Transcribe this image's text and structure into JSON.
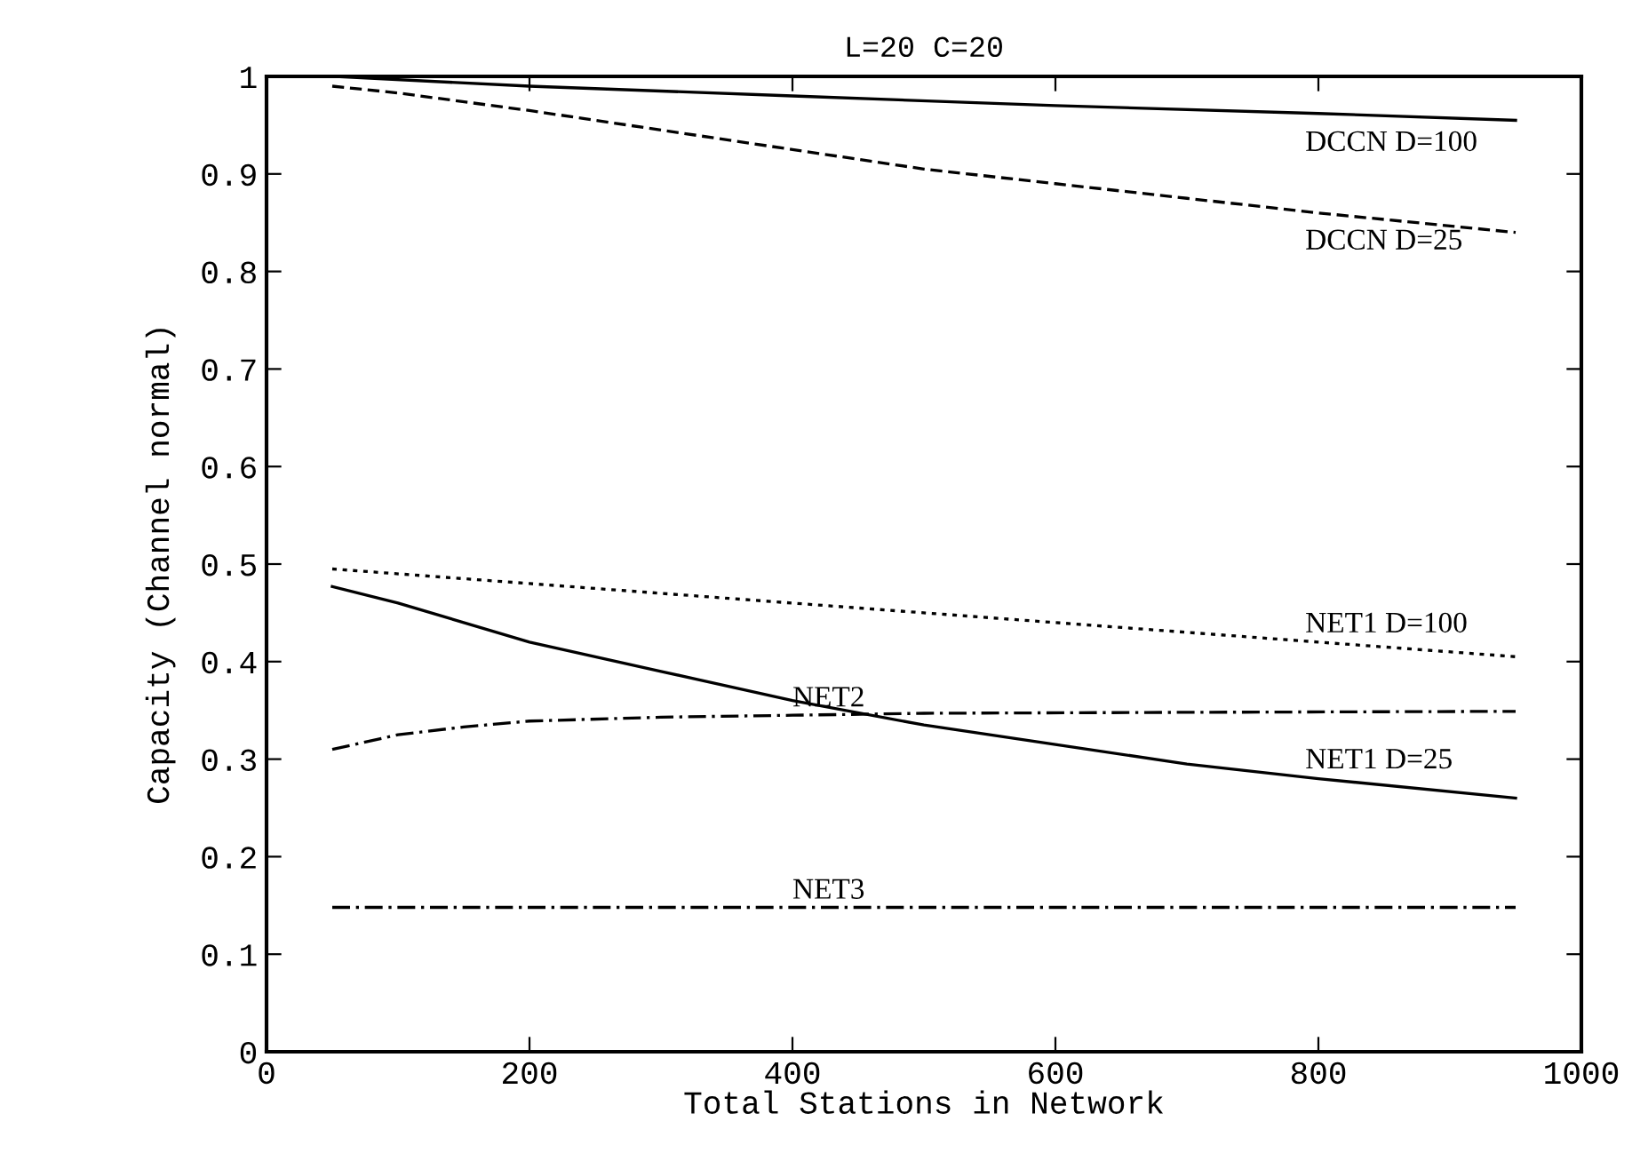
{
  "chart_data": {
    "type": "line",
    "title": "L=20 C=20",
    "xlabel": "Total Stations in Network",
    "ylabel": "Capacity (Channel normal)",
    "xlim": [
      0,
      1000
    ],
    "xticks": [
      0,
      200,
      400,
      600,
      800,
      1000
    ],
    "ylim": [
      0,
      1
    ],
    "yticks": [
      0,
      0.1,
      0.2,
      0.3,
      0.4,
      0.5,
      0.6,
      0.7,
      0.8,
      0.9,
      1
    ],
    "grid": false,
    "legend": false,
    "marker": "none",
    "series": [
      {
        "name": "DCCN D=100",
        "color": "#000000",
        "line_style": "solid",
        "x": [
          50,
          200,
          400,
          600,
          800,
          950
        ],
        "values": [
          1.0,
          0.99,
          0.98,
          0.97,
          0.962,
          0.955
        ]
      },
      {
        "name": "DCCN D=25",
        "color": "#000000",
        "line_style": "dashed",
        "x": [
          50,
          100,
          200,
          300,
          400,
          500,
          600,
          700,
          800,
          950
        ],
        "values": [
          0.99,
          0.983,
          0.965,
          0.945,
          0.925,
          0.905,
          0.89,
          0.875,
          0.86,
          0.84
        ]
      },
      {
        "name": "NET1 D=100",
        "color": "#000000",
        "line_style": "dotted",
        "x": [
          50,
          200,
          400,
          600,
          800,
          950
        ],
        "values": [
          0.495,
          0.48,
          0.46,
          0.44,
          0.42,
          0.405
        ]
      },
      {
        "name": "NET1 D=25",
        "color": "#000000",
        "line_style": "solid",
        "x": [
          50,
          100,
          200,
          300,
          400,
          500,
          600,
          700,
          800,
          950
        ],
        "values": [
          0.477,
          0.46,
          0.42,
          0.39,
          0.36,
          0.335,
          0.315,
          0.295,
          0.28,
          0.26
        ]
      },
      {
        "name": "NET2",
        "color": "#000000",
        "line_style": "dashdot",
        "x": [
          50,
          100,
          150,
          200,
          300,
          400,
          500,
          700,
          950
        ],
        "values": [
          0.31,
          0.325,
          0.333,
          0.339,
          0.343,
          0.345,
          0.347,
          0.348,
          0.349
        ]
      },
      {
        "name": "NET3",
        "color": "#000000",
        "line_style": "dashdot",
        "x": [
          50,
          950
        ],
        "values": [
          0.148,
          0.148
        ]
      }
    ]
  }
}
